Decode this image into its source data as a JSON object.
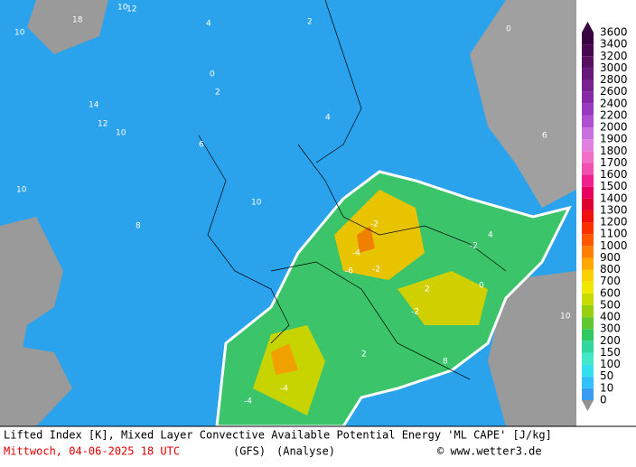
{
  "caption": {
    "line1": "Lifted Index [K], Mixed Layer Convective Available Potential Energy 'ML CAPE' [J/kg]",
    "date": "Mittwoch, 04-06-2025  18 UTC",
    "model": "(GFS)",
    "mode": "(Analyse)",
    "site": "© www.wetter3.de"
  },
  "map_labels": [
    "12",
    "10",
    "18",
    "10",
    "14",
    "12",
    "10",
    "10",
    "4",
    "2",
    "0",
    "2",
    "4",
    "6",
    "8",
    "10",
    "-2",
    "-4",
    "-6",
    "-2",
    "-4",
    "-2",
    "0",
    "2",
    "4",
    "6",
    "8",
    "10",
    "-2",
    "-4",
    "2",
    "0"
  ],
  "colorbar": {
    "labels": [
      "0",
      "10",
      "50",
      "100",
      "150",
      "200",
      "300",
      "400",
      "500",
      "600",
      "700",
      "800",
      "900",
      "1000",
      "1100",
      "1200",
      "1300",
      "1400",
      "1500",
      "1600",
      "1700",
      "1800",
      "1900",
      "2000",
      "2200",
      "2400",
      "2600",
      "2800",
      "3000",
      "3200",
      "3400",
      "3600"
    ],
    "colors": [
      "#3a9cf0",
      "#33c0ff",
      "#33e0f0",
      "#40e8c8",
      "#30d8a0",
      "#30c860",
      "#60c830",
      "#98d010",
      "#c8dc00",
      "#f0e800",
      "#ffd000",
      "#ffa800",
      "#ff8000",
      "#ff5800",
      "#ff3000",
      "#f01010",
      "#e00030",
      "#e80060",
      "#f0208c",
      "#f050b0",
      "#f070c8",
      "#e080e0",
      "#c870e0",
      "#b050d0",
      "#9838c0",
      "#8828a8",
      "#782090",
      "#681878",
      "#581060",
      "#480850",
      "#380440"
    ]
  }
}
